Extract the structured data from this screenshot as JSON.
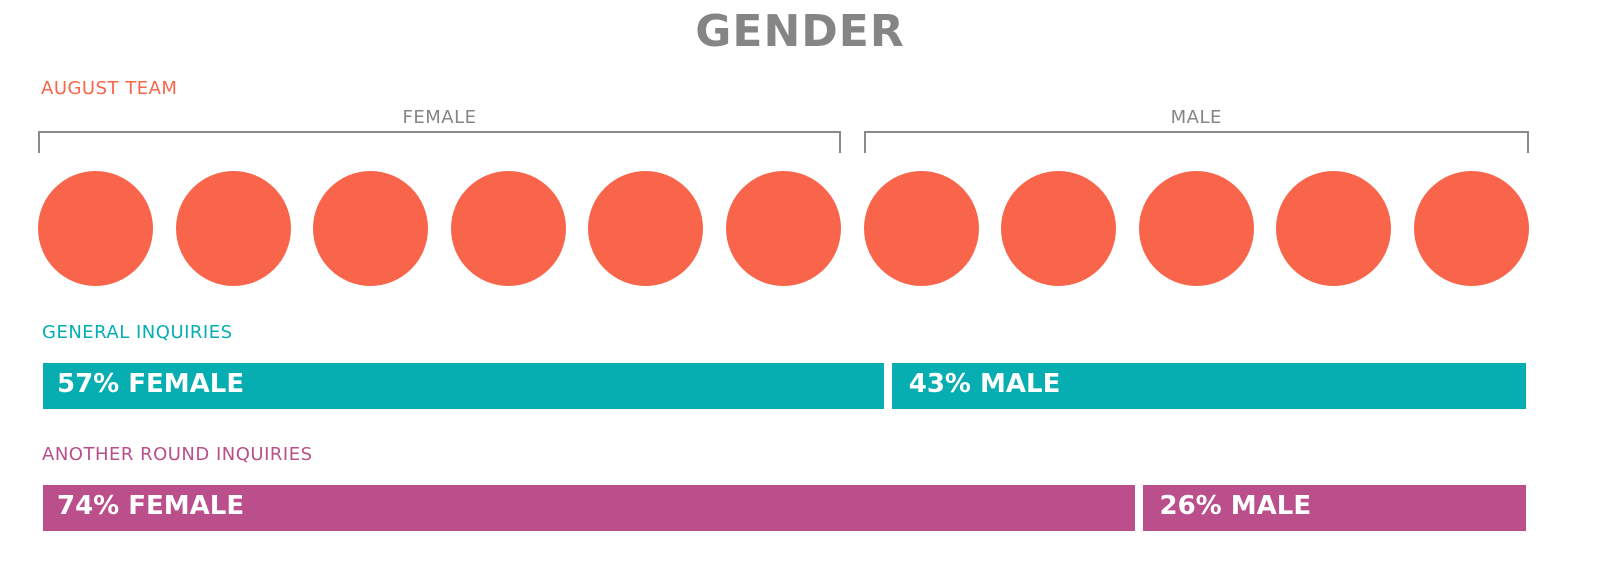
{
  "title": "GENDER",
  "colors": {
    "title": "#858585",
    "team": "#f9654a",
    "general": "#06aeb2",
    "another": "#ba4f8c",
    "bracket": "#8a8a8a"
  },
  "team": {
    "label": "AUGUST TEAM",
    "groups": [
      {
        "name": "FEMALE",
        "count": 6
      },
      {
        "name": "MALE",
        "count": 5
      }
    ]
  },
  "general": {
    "label": "GENERAL INQUIRIES",
    "female_label": "57% FEMALE",
    "male_label": "43% MALE"
  },
  "another": {
    "label": "ANOTHER ROUND INQUIRIES",
    "female_label": "74% FEMALE",
    "male_label": "26% MALE"
  },
  "chart_data": [
    {
      "type": "pictogram",
      "title": "AUGUST TEAM",
      "categories": [
        "FEMALE",
        "MALE"
      ],
      "values": [
        6,
        5
      ]
    },
    {
      "type": "bar",
      "title": "GENERAL INQUIRIES",
      "categories": [
        "FEMALE",
        "MALE"
      ],
      "values": [
        57,
        43
      ],
      "unit": "%"
    },
    {
      "type": "bar",
      "title": "ANOTHER ROUND INQUIRIES",
      "categories": [
        "FEMALE",
        "MALE"
      ],
      "values": [
        74,
        26
      ],
      "unit": "%"
    }
  ]
}
